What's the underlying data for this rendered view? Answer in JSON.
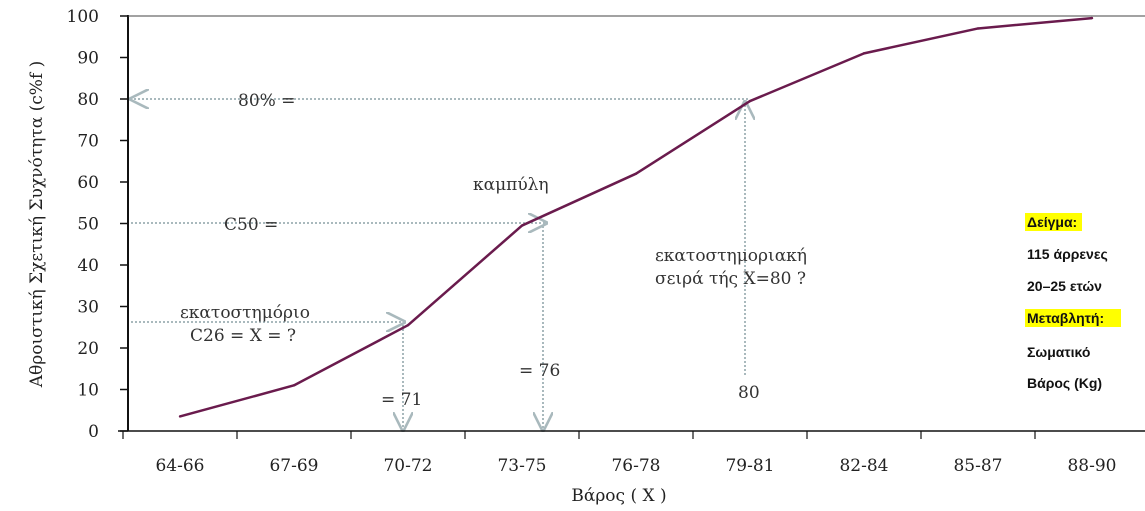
{
  "chart_data": {
    "type": "line",
    "title": "",
    "xlabel": "Βάρος ( Χ )",
    "ylabel": "Αθροιστική Σχετική Συχνότητα  (c%f )",
    "ylim": [
      0,
      100
    ],
    "yticks": [
      0,
      10,
      20,
      30,
      40,
      50,
      60,
      70,
      80,
      90,
      100
    ],
    "categories": [
      "64-66",
      "67-69",
      "70-72",
      "73-75",
      "76-78",
      "79-81",
      "82-84",
      "85-87",
      "88-90"
    ],
    "series": [
      {
        "values": [
          3.5,
          11,
          25.5,
          49.5,
          62,
          79.5,
          91,
          97,
          99.5
        ]
      }
    ],
    "line_color": "#6a1b4d",
    "grid": false,
    "annotations": {
      "p80_label": "80% =",
      "c50_label": "C50 =",
      "percentile_title": "εκατοστημόριο",
      "c26_label": "C26 = X = ?",
      "curve_label": "καμπύλη",
      "rank_line1": "εκατοστημοριακή",
      "rank_line2": "σειρά τής Χ=80 ?",
      "val71": "= 71",
      "val76": "= 76",
      "val80": "80"
    }
  },
  "legend_box": {
    "sample_heading": "Δείγμα:",
    "sample_line1": "115 άρρενες",
    "sample_line2": "20–25 ετών",
    "variable_heading": "Μεταβλητή:",
    "variable_line1": "Σωματικό",
    "variable_line2": "Βάρος (Kg)",
    "highlight_color": "#ffff00"
  }
}
